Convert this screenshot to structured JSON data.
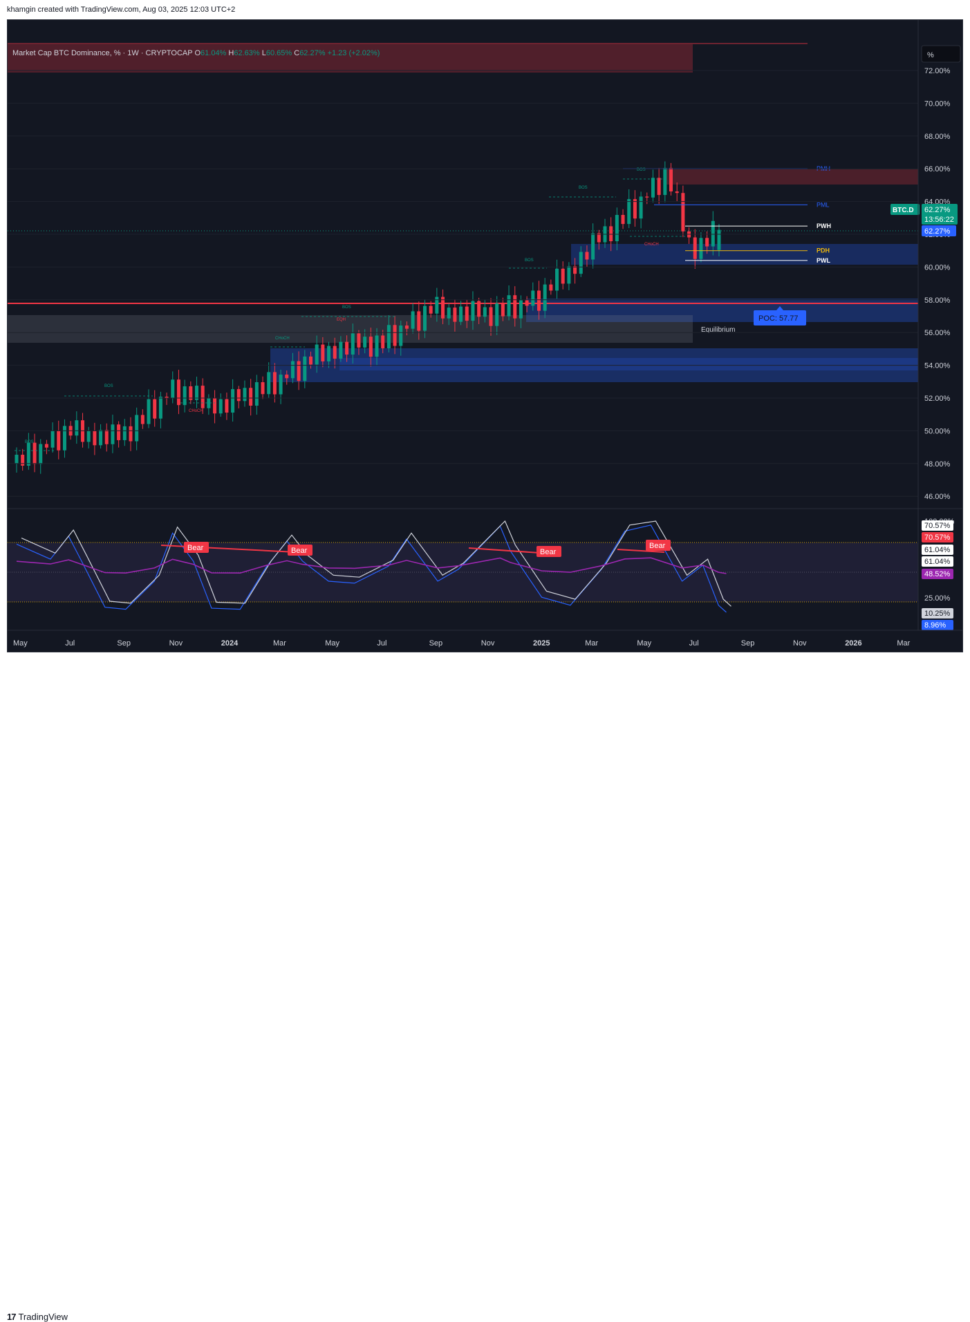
{
  "header": {
    "attribution": "khamgin created with TradingView.com, Aug 03, 2025 12:03 UTC+2"
  },
  "footer": {
    "logo_mark": "17",
    "brand": "TradingView"
  },
  "legend": {
    "title": "Market Cap BTC Dominance, % · 1W · CRYPTOCAP",
    "o_label": "O",
    "o_value": "61.04%",
    "h_label": "H",
    "h_value": "62.63%",
    "l_label": "L",
    "l_value": "60.65%",
    "c_label": "C",
    "c_value": "62.27%",
    "change": "+1.23 (+2.02%)"
  },
  "scale_button": "%",
  "price_axis": {
    "ticks": [
      "72.00%",
      "70.00%",
      "68.00%",
      "66.00%",
      "64.00%",
      "62.00%",
      "60.00%",
      "58.00%",
      "56.00%",
      "54.00%",
      "52.00%",
      "50.00%",
      "48.00%",
      "46.00%"
    ],
    "tick_values": [
      72,
      70,
      68,
      66,
      64,
      62,
      60,
      58,
      56,
      54,
      52,
      50,
      48,
      46
    ],
    "symbol_tag": "BTC.D",
    "last_price": "62.27%",
    "countdown": "13:56:22",
    "crosshair_price": "62.27%"
  },
  "osc_axis": {
    "ticks": [
      "100.00%",
      "25.00%"
    ],
    "labels": [
      "70.57%",
      "70.57%",
      "61.04%",
      "61.04%",
      "48.52%",
      "10.25%",
      "8.96%"
    ]
  },
  "time_axis": [
    "May",
    "Jul",
    "Sep",
    "Nov",
    "2024",
    "Mar",
    "May",
    "Jul",
    "Sep",
    "Nov",
    "2025",
    "Mar",
    "May",
    "Jul",
    "Sep",
    "Nov",
    "2026",
    "Mar"
  ],
  "levels": {
    "pmh": "PMH",
    "pml": "PML",
    "pwh": "PWH",
    "pdh": "PDH",
    "pwl": "PWL",
    "poc": "POC: 57.77",
    "equilibrium": "Equilibrium"
  },
  "structure_labels": [
    "BOS",
    "BOS",
    "CHoCH",
    "CHoCH",
    "BOS",
    "EQH",
    "BOS",
    "BOS",
    "BOS",
    "CHoCH"
  ],
  "osc_signals": [
    "Bear",
    "Bear",
    "Bear",
    "Bear"
  ],
  "colors": {
    "background": "#131722",
    "bull": "#089981",
    "bear": "#f23645",
    "accent_blue": "#2962ff",
    "rsi": "#9c27b0",
    "grid": "#1e222d"
  },
  "chart_data": {
    "type": "candlestick",
    "title": "Market Cap BTC Dominance, % · 1W · CRYPTOCAP",
    "ylim": [
      45.3,
      74.3
    ],
    "price_points_approx": [
      [
        "2023-05",
        48.0
      ],
      [
        "2023-07",
        50.0
      ],
      [
        "2023-09",
        49.5
      ],
      [
        "2023-11",
        52.5
      ],
      [
        "2024-01",
        51.5
      ],
      [
        "2024-03",
        53.0
      ],
      [
        "2024-05",
        55.0
      ],
      [
        "2024-07",
        55.3
      ],
      [
        "2024-09",
        57.5
      ],
      [
        "2024-11",
        57.0
      ],
      [
        "2025-01",
        58.0
      ],
      [
        "2025-03",
        61.0
      ],
      [
        "2025-05",
        64.0
      ],
      [
        "2025-06",
        65.7
      ],
      [
        "2025-07",
        61.0
      ],
      [
        "2025-08",
        62.27
      ]
    ],
    "last": {
      "open": 61.04,
      "high": 62.63,
      "low": 60.65,
      "close": 62.27
    },
    "horizontal_levels": {
      "PMH": 66.0,
      "PML": 63.8,
      "PWH": 62.5,
      "PDH": 61.0,
      "PWL": 60.4,
      "POC": 57.77
    },
    "oscillator_levels": [
      70.57,
      61.04,
      48.52,
      10.25,
      8.96
    ]
  }
}
